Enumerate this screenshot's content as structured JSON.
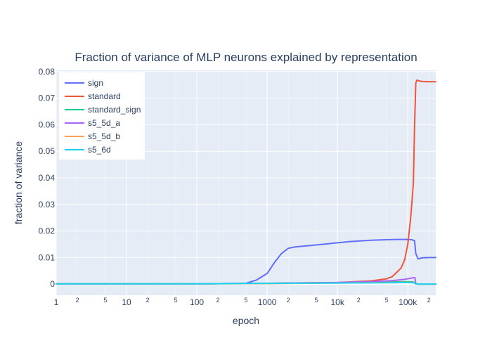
{
  "chart_data": {
    "type": "line",
    "title": "Fraction of variance of MLP neurons explained by representation",
    "xlabel": "epoch",
    "ylabel": "fraction of variance",
    "x_scale": "log",
    "xlim": [
      1,
      250000
    ],
    "ylim": [
      -0.0042,
      0.0805
    ],
    "x_major_ticks": [
      {
        "value": 1,
        "label": "1"
      },
      {
        "value": 10,
        "label": "10"
      },
      {
        "value": 100,
        "label": "100"
      },
      {
        "value": 1000,
        "label": "1000"
      },
      {
        "value": 10000,
        "label": "10k"
      },
      {
        "value": 100000,
        "label": "100k"
      }
    ],
    "x_minor_ticks": [
      {
        "value": 2,
        "label": "2"
      },
      {
        "value": 5,
        "label": "5"
      },
      {
        "value": 20,
        "label": "2"
      },
      {
        "value": 50,
        "label": "5"
      },
      {
        "value": 200,
        "label": "2"
      },
      {
        "value": 500,
        "label": "5"
      },
      {
        "value": 2000,
        "label": "2"
      },
      {
        "value": 5000,
        "label": "5"
      },
      {
        "value": 20000,
        "label": "2"
      },
      {
        "value": 50000,
        "label": "5"
      },
      {
        "value": 200000,
        "label": "2"
      }
    ],
    "y_ticks": [
      {
        "value": 0,
        "label": "0"
      },
      {
        "value": 0.01,
        "label": "0.01"
      },
      {
        "value": 0.02,
        "label": "0.02"
      },
      {
        "value": 0.03,
        "label": "0.03"
      },
      {
        "value": 0.04,
        "label": "0.04"
      },
      {
        "value": 0.05,
        "label": "0.05"
      },
      {
        "value": 0.06,
        "label": "0.06"
      },
      {
        "value": 0.07,
        "label": "0.07"
      },
      {
        "value": 0.08,
        "label": "0.08"
      }
    ],
    "legend_position": "top-left",
    "grid": true,
    "colors": {
      "plot_background": "#e5ecf6",
      "grid": "#ffffff",
      "text": "#2a3f5f"
    },
    "series": [
      {
        "name": "sign",
        "color": "#636efa",
        "x": [
          1,
          10,
          100,
          300,
          500,
          700,
          1000,
          1300,
          1600,
          2000,
          2500,
          4000,
          8000,
          15000,
          30000,
          50000,
          70000,
          100000,
          115000,
          125000,
          130000,
          140000,
          160000,
          200000,
          250000
        ],
        "y": [
          0.0001,
          0.0001,
          0.0001,
          0.0002,
          0.0003,
          0.0015,
          0.004,
          0.0085,
          0.0115,
          0.0135,
          0.014,
          0.0145,
          0.0153,
          0.016,
          0.0165,
          0.0167,
          0.0168,
          0.0168,
          0.0167,
          0.0163,
          0.0115,
          0.0095,
          0.0099,
          0.01,
          0.01
        ]
      },
      {
        "name": "standard",
        "color": "#ef553b",
        "x": [
          1,
          100,
          1000,
          10000,
          30000,
          50000,
          60000,
          70000,
          80000,
          90000,
          100000,
          110000,
          120000,
          125000,
          130000,
          135000,
          145000,
          160000,
          200000,
          250000
        ],
        "y": [
          0.0001,
          0.0001,
          0.0003,
          0.0006,
          0.0012,
          0.002,
          0.0028,
          0.0045,
          0.006,
          0.009,
          0.015,
          0.025,
          0.038,
          0.06,
          0.0758,
          0.0768,
          0.0765,
          0.0763,
          0.0762,
          0.0762
        ]
      },
      {
        "name": "standard_sign",
        "color": "#00cc96",
        "x": [
          1,
          100,
          1000,
          10000,
          50000,
          100000,
          120000,
          130000,
          140000,
          250000
        ],
        "y": [
          0.0001,
          0.0001,
          0.0002,
          0.0005,
          0.0008,
          0.0009,
          0.0008,
          0.0001,
          0.0,
          0.0
        ]
      },
      {
        "name": "s5_5d_a",
        "color": "#ab63fa",
        "x": [
          1,
          100,
          1000,
          10000,
          30000,
          60000,
          90000,
          110000,
          120000,
          126000,
          130000,
          140000,
          250000
        ],
        "y": [
          0.0001,
          0.0001,
          0.0003,
          0.0006,
          0.0009,
          0.0013,
          0.0018,
          0.0022,
          0.0024,
          0.0024,
          0.0002,
          0.0,
          0.0
        ]
      },
      {
        "name": "s5_5d_b",
        "color": "#ffa15a",
        "x": [
          1,
          100,
          1000,
          10000,
          50000,
          100000,
          120000,
          130000,
          140000,
          250000
        ],
        "y": [
          0.0001,
          0.0001,
          0.0002,
          0.0004,
          0.0006,
          0.0007,
          0.0006,
          0.0001,
          0.0,
          0.0
        ]
      },
      {
        "name": "s5_6d",
        "color": "#19d3f3",
        "x": [
          1,
          100,
          1000,
          10000,
          50000,
          100000,
          120000,
          130000,
          140000,
          250000
        ],
        "y": [
          0.0001,
          0.0001,
          0.0003,
          0.0004,
          0.0005,
          0.0006,
          0.0005,
          0.0001,
          0.0,
          0.0
        ]
      }
    ]
  }
}
